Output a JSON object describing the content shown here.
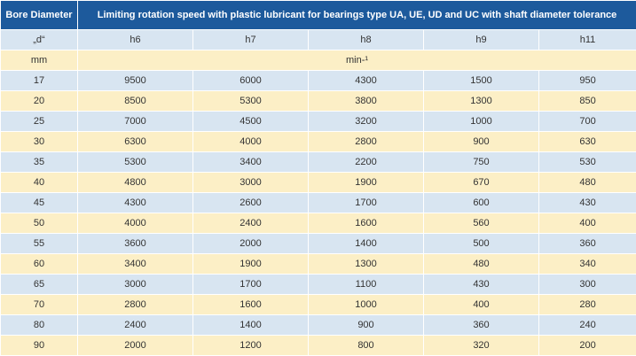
{
  "table": {
    "header": {
      "bore": "Bore Diameter",
      "title": "Limiting rotation speed with plastic lubricant for bearings type UA, UE, UD and UC with shaft diameter tolerance"
    },
    "subheader": {
      "d_label": "„d“",
      "columns": [
        "h6",
        "h7",
        "h8",
        "h9",
        "h11"
      ]
    },
    "units": {
      "bore": "mm",
      "speed": "min-¹"
    },
    "rows": [
      [
        "17",
        "9500",
        "6000",
        "4300",
        "1500",
        "950"
      ],
      [
        "20",
        "8500",
        "5300",
        "3800",
        "1300",
        "850"
      ],
      [
        "25",
        "7000",
        "4500",
        "3200",
        "1000",
        "700"
      ],
      [
        "30",
        "6300",
        "4000",
        "2800",
        "900",
        "630"
      ],
      [
        "35",
        "5300",
        "3400",
        "2200",
        "750",
        "530"
      ],
      [
        "40",
        "4800",
        "3000",
        "1900",
        "670",
        "480"
      ],
      [
        "45",
        "4300",
        "2600",
        "1700",
        "600",
        "430"
      ],
      [
        "50",
        "4000",
        "2400",
        "1600",
        "560",
        "400"
      ],
      [
        "55",
        "3600",
        "2000",
        "1400",
        "500",
        "360"
      ],
      [
        "60",
        "3400",
        "1900",
        "1300",
        "480",
        "340"
      ],
      [
        "65",
        "3000",
        "1700",
        "1100",
        "430",
        "300"
      ],
      [
        "70",
        "2800",
        "1600",
        "1000",
        "400",
        "280"
      ],
      [
        "80",
        "2400",
        "1400",
        "900",
        "360",
        "240"
      ],
      [
        "90",
        "2000",
        "1200",
        "800",
        "320",
        "200"
      ]
    ]
  },
  "colors": {
    "header_bg": "#1d5a9c",
    "row_blue": "#d8e5f1",
    "row_cream": "#fcefc6"
  }
}
